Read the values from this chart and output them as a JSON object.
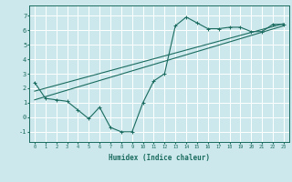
{
  "xlabel": "Humidex (Indice chaleur)",
  "ylabel": "",
  "bg_color": "#cce8ec",
  "line_color": "#1a6b60",
  "grid_color": "#ffffff",
  "xlim": [
    -0.5,
    23.5
  ],
  "ylim": [
    -1.7,
    7.7
  ],
  "x_ticks": [
    0,
    1,
    2,
    3,
    4,
    5,
    6,
    7,
    8,
    9,
    10,
    11,
    12,
    13,
    14,
    15,
    16,
    17,
    18,
    19,
    20,
    21,
    22,
    23
  ],
  "y_ticks": [
    -1,
    0,
    1,
    2,
    3,
    4,
    5,
    6,
    7
  ],
  "main_x": [
    0,
    1,
    2,
    3,
    4,
    5,
    6,
    7,
    8,
    9,
    10,
    11,
    12,
    13,
    14,
    15,
    16,
    17,
    18,
    19,
    20,
    21,
    22,
    23
  ],
  "main_y": [
    2.4,
    1.3,
    1.2,
    1.1,
    0.5,
    -0.1,
    0.7,
    -0.7,
    -1.0,
    -1.0,
    1.0,
    2.5,
    3.0,
    6.3,
    6.9,
    6.5,
    6.1,
    6.1,
    6.2,
    6.2,
    5.9,
    5.9,
    6.4,
    6.4
  ],
  "line1_x": [
    0,
    23
  ],
  "line1_y": [
    1.2,
    6.3
  ],
  "line2_x": [
    0,
    23
  ],
  "line2_y": [
    1.8,
    6.45
  ],
  "marker": "+"
}
